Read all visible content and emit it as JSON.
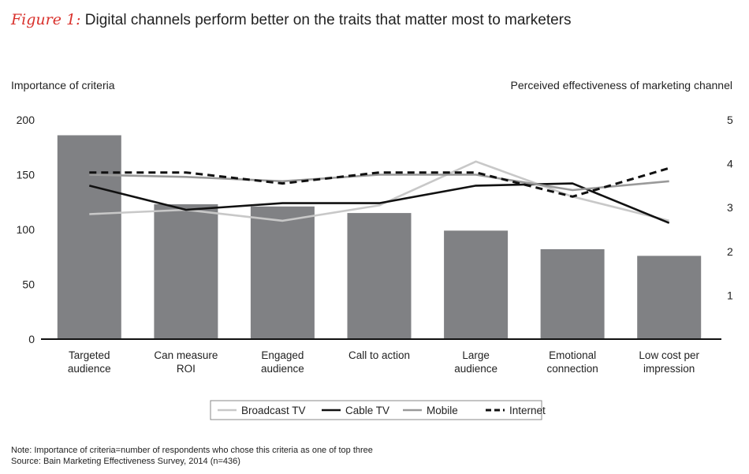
{
  "figure": {
    "label": "Figure 1:",
    "title": "Digital channels perform better on the traits that matter most to marketers"
  },
  "chart_data": {
    "type": "bar",
    "categories": [
      [
        "Targeted",
        "audience"
      ],
      [
        "Can measure",
        "ROI"
      ],
      [
        "Engaged",
        "audience"
      ],
      [
        "Call to action"
      ],
      [
        "Large",
        "audience"
      ],
      [
        "Emotional",
        "connection"
      ],
      [
        "Low cost per",
        "impression"
      ]
    ],
    "bars": {
      "name": "Importance of criteria",
      "values": [
        186,
        123,
        121,
        115,
        99,
        82,
        76
      ],
      "color": "#808184"
    },
    "left_axis": {
      "label": "Importance of criteria",
      "ylim": [
        0,
        200
      ],
      "ticks": [
        0,
        50,
        100,
        150,
        200
      ]
    },
    "right_axis": {
      "label": "Perceived effectiveness of marketing channel",
      "ylim": [
        0,
        5
      ],
      "ticks": [
        1,
        2,
        3,
        4,
        5
      ]
    },
    "series": [
      {
        "name": "Broadcast TV",
        "values": [
          2.85,
          2.95,
          2.7,
          3.05,
          4.05,
          3.25,
          2.7
        ],
        "color": "#c8c8c8",
        "dash": "solid"
      },
      {
        "name": "Cable TV",
        "values": [
          3.5,
          2.95,
          3.1,
          3.1,
          3.5,
          3.55,
          2.65
        ],
        "color": "#111111",
        "dash": "solid"
      },
      {
        "name": "Mobile",
        "values": [
          3.75,
          3.7,
          3.6,
          3.75,
          3.75,
          3.4,
          3.6
        ],
        "color": "#9a9a9a",
        "dash": "solid"
      },
      {
        "name": "Internet",
        "values": [
          3.8,
          3.8,
          3.55,
          3.8,
          3.8,
          3.25,
          3.9
        ],
        "color": "#111111",
        "dash": "dashed"
      }
    ],
    "legend_position": "bottom-center",
    "grid": false
  },
  "footnotes": {
    "note": "Note: Importance of criteria=number of respondents who chose this criteria as one of top three",
    "source": "Source: Bain Marketing Effectiveness Survey, 2014 (n=436)"
  }
}
